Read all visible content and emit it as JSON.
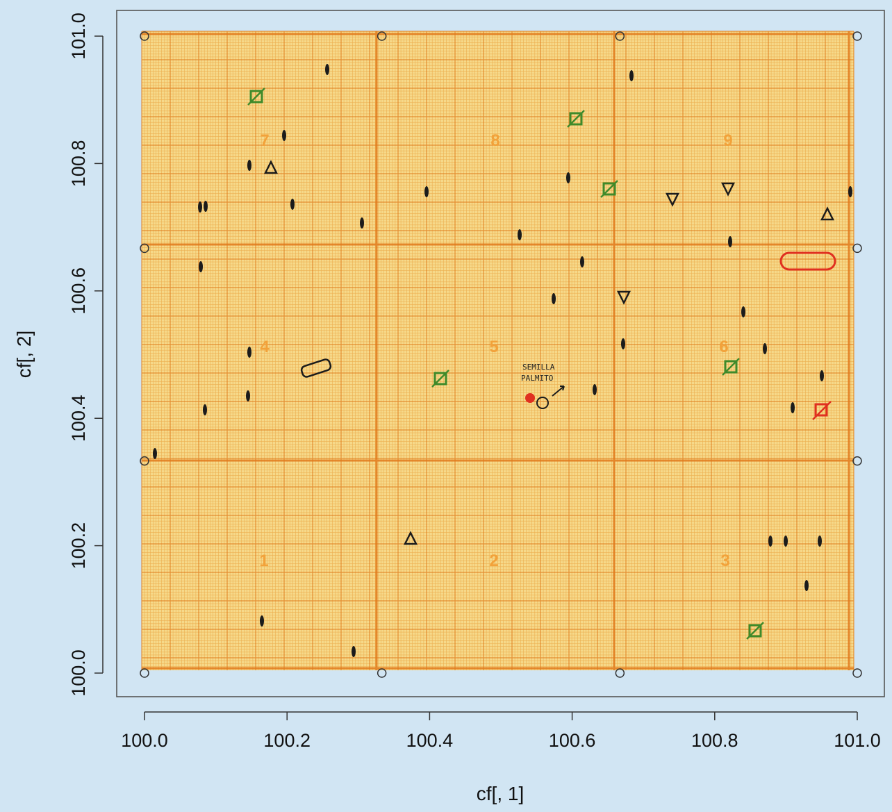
{
  "chart_data": {
    "type": "scatter",
    "title": "",
    "xlabel": "cf[, 1]",
    "ylabel": "cf[, 2]",
    "xlim": [
      100.0,
      101.0
    ],
    "ylim": [
      100.0,
      101.0
    ],
    "x_ticks": [
      "100.0",
      "100.2",
      "100.4",
      "100.6",
      "100.8",
      "101.0"
    ],
    "y_ticks": [
      "100.0",
      "100.2",
      "100.4",
      "100.6",
      "100.8",
      "101.0"
    ],
    "grid": false,
    "background_image": "hand-annotated graph paper map (orange millimetre grid) overlaid on plot region",
    "points_x": [
      100.0,
      100.333,
      100.667,
      101.0,
      100.0,
      100.333,
      100.667,
      101.0,
      100.0,
      101.0,
      100.0,
      101.0
    ],
    "points_y": [
      100.0,
      100.0,
      100.0,
      100.0,
      101.0,
      101.0,
      101.0,
      101.0,
      100.333,
      100.333,
      100.667,
      100.667
    ],
    "point_style": "open circle",
    "colors": {
      "background": "#d1e5f3",
      "paper": "#f6d98a",
      "grid_fine": "#e9a03c",
      "grid_major": "#e07a1c",
      "marker_dark": "#1b1b1b",
      "marker_green": "#3f8a2a",
      "marker_red": "#e03020"
    },
    "annotations": {
      "zone_numbers": [
        "1",
        "2",
        "3",
        "4",
        "5",
        "6",
        "7",
        "8",
        "9"
      ],
      "handwritten_note": [
        "SEMILLA",
        "PALMITO"
      ]
    }
  }
}
